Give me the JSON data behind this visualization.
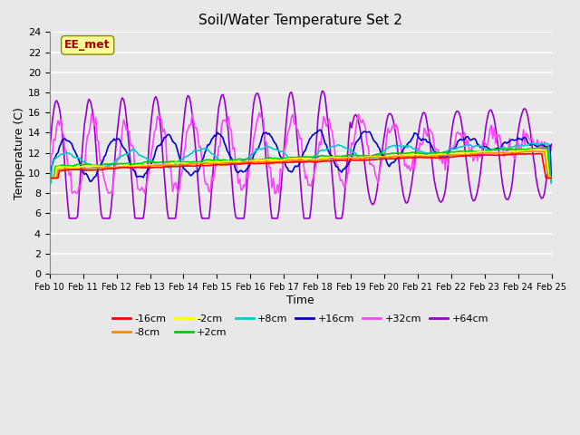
{
  "title": "Soil/Water Temperature Set 2",
  "xlabel": "Time",
  "ylabel": "Temperature (C)",
  "ylim": [
    0,
    24
  ],
  "yticks": [
    0,
    2,
    4,
    6,
    8,
    10,
    12,
    14,
    16,
    18,
    20,
    22,
    24
  ],
  "x_labels": [
    "Feb 10",
    "Feb 11",
    "Feb 12",
    "Feb 13",
    "Feb 14",
    "Feb 15",
    "Feb 16",
    "Feb 17",
    "Feb 18",
    "Feb 19",
    "Feb 20",
    "Feb 21",
    "Feb 22",
    "Feb 23",
    "Feb 24",
    "Feb 25"
  ],
  "series": {
    "-16cm": {
      "color": "#FF0000",
      "lw": 1.2
    },
    "-8cm": {
      "color": "#FF8800",
      "lw": 1.2
    },
    "-2cm": {
      "color": "#FFFF00",
      "lw": 1.2
    },
    "+2cm": {
      "color": "#00CC00",
      "lw": 1.2
    },
    "+8cm": {
      "color": "#00CCCC",
      "lw": 1.2
    },
    "+16cm": {
      "color": "#0000CC",
      "lw": 1.2
    },
    "+32cm": {
      "color": "#FF44FF",
      "lw": 1.2
    },
    "+64cm": {
      "color": "#9900CC",
      "lw": 1.2
    }
  },
  "annotation_text": "EE_met",
  "annotation_color": "#AA0000",
  "annotation_bg": "#FFFF99",
  "bg_color": "#E8E8E8"
}
